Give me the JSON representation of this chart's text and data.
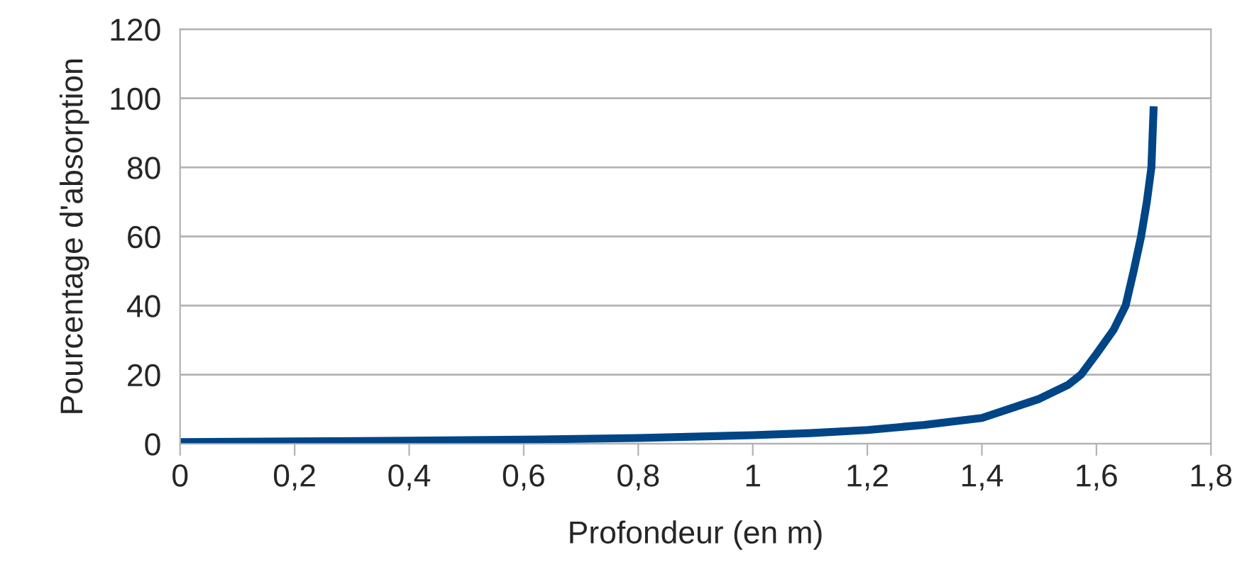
{
  "chart_data": {
    "type": "line",
    "xlabel": "Profondeur (en m)",
    "ylabel": "Pourcentage d'absorption",
    "series": [
      {
        "color": "#004586",
        "x": [
          0,
          0.2,
          0.4,
          0.6,
          0.8,
          1.0,
          1.1,
          1.2,
          1.3,
          1.4,
          1.5,
          1.55,
          1.573,
          1.6,
          1.63,
          1.651,
          1.665,
          1.678,
          1.688,
          1.696,
          1.7
        ],
        "values": [
          0.5,
          0.7,
          0.9,
          1.2,
          1.7,
          2.5,
          3.1,
          4,
          5.5,
          7.5,
          13,
          17,
          20,
          26,
          33,
          40,
          50,
          60,
          70,
          80,
          97.7
        ]
      }
    ],
    "xlim": [
      0,
      1.8
    ],
    "xticks": [
      0,
      {
        "value": 0.2,
        "label": "0,2"
      },
      {
        "value": 0.4,
        "label": "0,4"
      },
      {
        "value": 0.6,
        "label": "0,6"
      },
      {
        "value": 0.8,
        "label": "0,8"
      },
      1,
      {
        "value": 1.2,
        "label": "1,2"
      },
      {
        "value": 1.4,
        "label": "1,4"
      },
      {
        "value": 1.6,
        "label": "1,6"
      },
      {
        "value": 1.8,
        "label": "1,8"
      }
    ],
    "ylim": [
      0,
      120
    ],
    "yticks": [
      0,
      20,
      40,
      60,
      80,
      100,
      120
    ],
    "grid": "y",
    "marker": "none",
    "line_style": "solid"
  }
}
